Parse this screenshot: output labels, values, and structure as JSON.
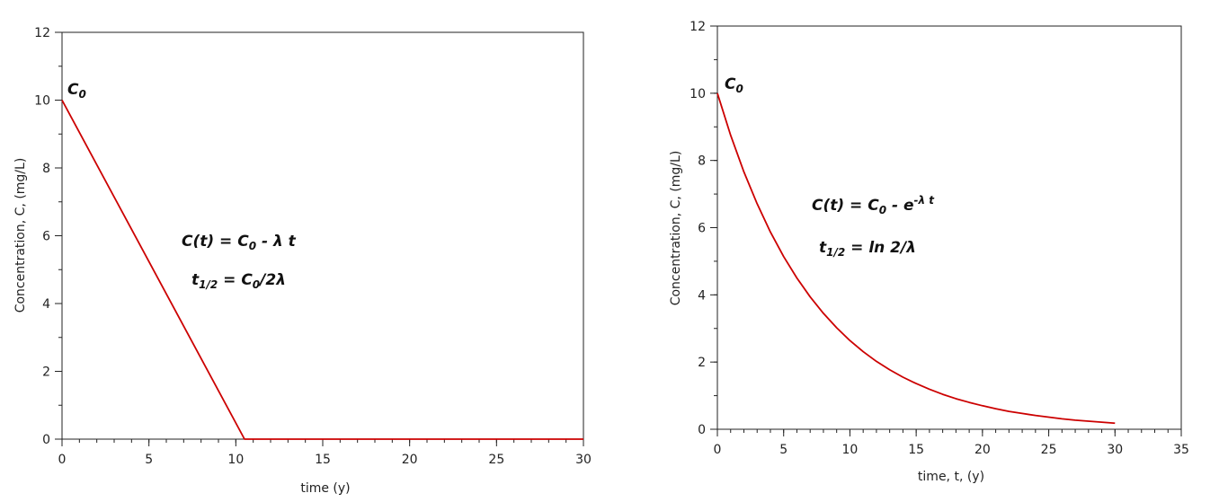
{
  "chart_data": [
    {
      "type": "line",
      "xlabel": "time (y)",
      "ylabel": "Concentration, C, (mg/L)",
      "xlim": [
        0,
        30
      ],
      "ylim": [
        0,
        12
      ],
      "xticks": [
        0,
        5,
        10,
        15,
        20,
        25,
        30
      ],
      "xtick_labels": [
        "0",
        "5",
        "10",
        "15",
        "20",
        "25",
        "30"
      ],
      "yticks": [
        0,
        2,
        4,
        6,
        8,
        10,
        12
      ],
      "ytick_labels": [
        "0",
        "2",
        "4",
        "6",
        "8",
        "10",
        "12"
      ],
      "grid": false,
      "line_color": "#cc0000",
      "series": [
        {
          "x": [
            0,
            10.5,
            30
          ],
          "y": [
            10,
            0,
            0
          ]
        }
      ],
      "annotations": {
        "c0_main": "C",
        "c0_sub": "0",
        "eq1_a": "C(t) = C",
        "eq1_sub": "0",
        "eq1_b": " - λ t",
        "eq2_a": "t",
        "eq2_sub": "1/2",
        "eq2_b": " = C",
        "eq2_sub2": "0",
        "eq2_c": "/2λ"
      }
    },
    {
      "type": "line",
      "xlabel": "time, t, (y)",
      "ylabel": "Concentration, C, (mg/L)",
      "xlim": [
        0,
        35
      ],
      "ylim": [
        0,
        12
      ],
      "xticks": [
        0,
        5,
        10,
        15,
        20,
        25,
        30,
        35
      ],
      "xtick_labels": [
        "0",
        "5",
        "10",
        "15",
        "20",
        "25",
        "30",
        "35"
      ],
      "yticks": [
        0,
        2,
        4,
        6,
        8,
        10,
        12
      ],
      "ytick_labels": [
        "0",
        "2",
        "4",
        "6",
        "8",
        "10",
        "12"
      ],
      "grid": false,
      "line_color": "#cc0000",
      "series": [
        {
          "x": [
            0,
            1,
            2,
            3,
            4,
            5,
            6,
            7,
            8,
            9,
            10,
            11,
            12,
            13,
            14,
            15,
            16,
            17,
            18,
            19,
            20,
            21,
            22,
            23,
            24,
            25,
            26,
            27,
            28,
            29,
            30
          ],
          "y": [
            10,
            8.75,
            7.66,
            6.71,
            5.87,
            5.14,
            4.5,
            3.94,
            3.45,
            3.02,
            2.64,
            2.31,
            2.02,
            1.77,
            1.55,
            1.36,
            1.19,
            1.04,
            0.91,
            0.8,
            0.7,
            0.61,
            0.53,
            0.47,
            0.41,
            0.36,
            0.31,
            0.27,
            0.24,
            0.21,
            0.18
          ]
        }
      ],
      "annotations": {
        "c0_main": "C",
        "c0_sub": "0",
        "eq1_a": "C(t) = C",
        "eq1_sub": "0",
        "eq1_b": " - e",
        "eq1_sup": "-λ t",
        "eq2_a": "t",
        "eq2_sub": "1/2",
        "eq2_b": " = ln 2/λ"
      }
    }
  ]
}
